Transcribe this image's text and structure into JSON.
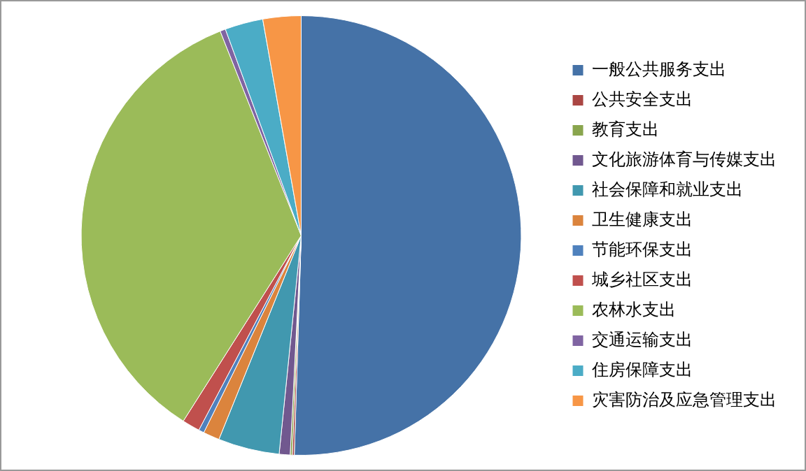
{
  "chart_data": {
    "type": "pie",
    "categories": [
      "一般公共服务支出",
      "公共安全支出",
      "教育支出",
      "文化旅游体育与传媒支出",
      "社会保障和就业支出",
      "卫生健康支出",
      "节能环保支出",
      "城乡社区支出",
      "农林水支出",
      "交通运输支出",
      "住房保障支出",
      "灾害防治及应急管理支出"
    ],
    "values": [
      50.5,
      0.15,
      0.15,
      0.8,
      4.5,
      1.2,
      0.4,
      1.3,
      35,
      0.4,
      2.8,
      2.8
    ],
    "colors": [
      "#4572a7",
      "#aa4643",
      "#89a54e",
      "#71588f",
      "#4198af",
      "#db843d",
      "#4f81bd",
      "#c0504d",
      "#9bbb59",
      "#8064a2",
      "#4bacc6",
      "#f79646"
    ],
    "legend": "right"
  }
}
